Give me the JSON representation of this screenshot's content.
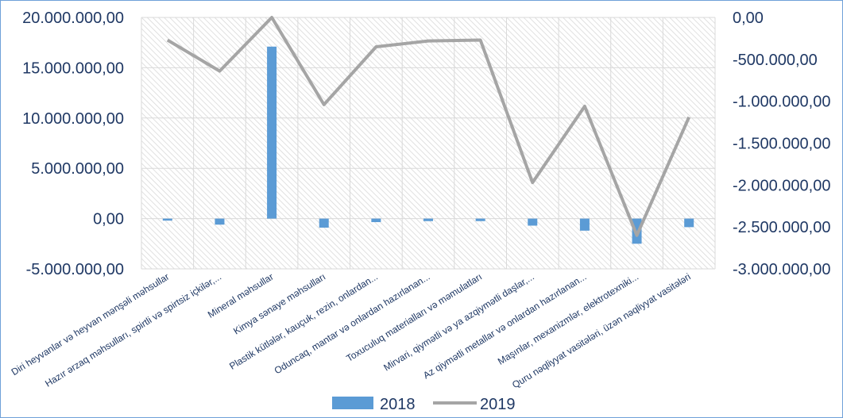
{
  "chart_data": {
    "type": "bar",
    "categories": [
      "Diri  heyvanlar və heyvan mənşəli məhsullar",
      "Hazır ərzaq məhsulları, spirtli və spirtsiz içkilər,...",
      "Mineral məhsullar",
      "Kimya sənaye məhsulları",
      "Plastik kütlələr, kauçuk, rezin, onlardan...",
      "Oduncaq, mantar və onlardan hazırlanan...",
      "Toxuculuq materialları və məmulatları",
      "Mirvari, qiymətli və ya azqiymətli daşlar,...",
      "Az qiymətli metallar və onlardan hazırlanan...",
      "Maşınlar, mexanizmlər, elektrotexniki...",
      "Quru nəqliyyat vasitələri, üzən nəqliyyat vasitələri"
    ],
    "series": [
      {
        "name": "2018",
        "type": "bar",
        "axis": "left",
        "color": "#5b9bd5",
        "values": [
          -200000,
          -600000,
          17100000,
          -900000,
          -350000,
          -250000,
          -250000,
          -700000,
          -1200000,
          -2500000,
          -850000
        ]
      },
      {
        "name": "2019",
        "type": "line",
        "axis": "right",
        "color": "#a5a5a5",
        "values": [
          -270000,
          -640000,
          0,
          -1040000,
          -350000,
          -280000,
          -270000,
          -1970000,
          -1060000,
          -2600000,
          -1190000
        ]
      }
    ],
    "y_left": {
      "min": -5000000,
      "max": 20000000,
      "step": 5000000,
      "tick_labels": [
        "-5.000.000,00",
        "0,00",
        "5.000.000,00",
        "10.000.000,00",
        "15.000.000,00",
        "20.000.000,00"
      ]
    },
    "y_right": {
      "min": -3000000,
      "max": 0,
      "step": 500000,
      "tick_labels": [
        "-3.000.000,00",
        "-2.500.000,00",
        "-2.000.000,00",
        "-1.500.000,00",
        "-1.000.000,00",
        "-500.000,00",
        "0,00"
      ]
    },
    "legend": {
      "position": "bottom",
      "items": [
        "2018",
        "2019"
      ]
    },
    "grid": true,
    "title": "",
    "xlabel": "",
    "ylabel": ""
  }
}
